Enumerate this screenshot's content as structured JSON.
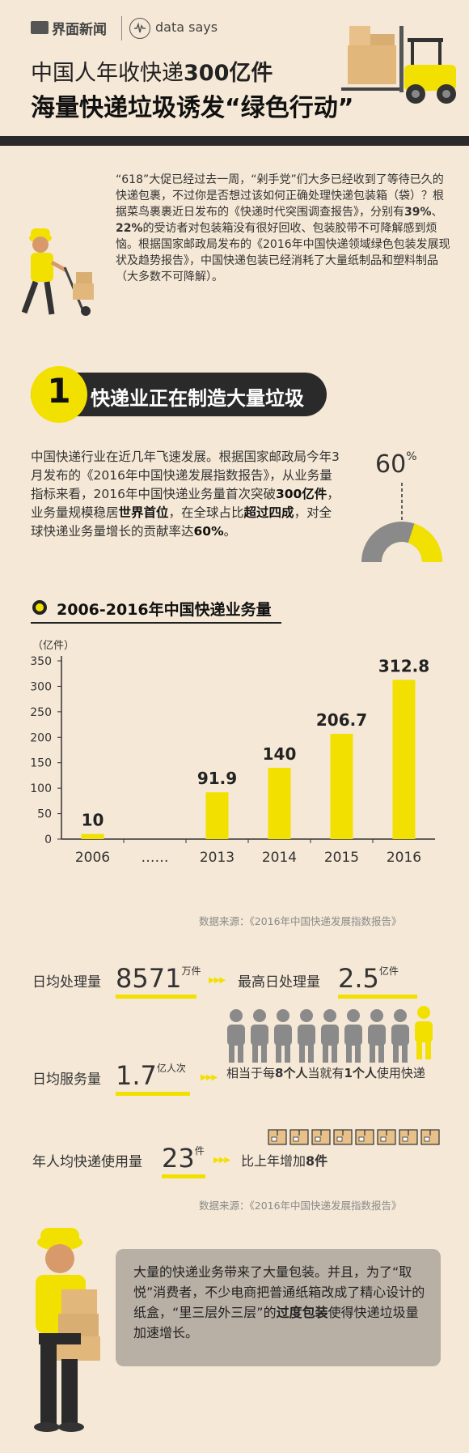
{
  "header": {
    "brand": "界面新闻",
    "data_says": "data says",
    "headline_line1_pre": "中国人年收快递",
    "headline_line1_bold": "300亿件",
    "headline_line2": "海量快递垃圾诱发“绿色行动”"
  },
  "intro": {
    "text_pre": "“618”大促已经过去一周，“剁手党”们大多已经收到了等待已久的快递包裹，不过你是否想过该如何正确处理快递包装箱（袋）？根据菜鸟裹裹近日发布的《快递时代突围调查报告》，分别有",
    "pct1": "39%",
    "sep": "、",
    "pct2": "22%",
    "text_post": "的受访者对包装箱没有很好回收、包装胶带不可降解感到烦恼。根据国家邮政局发布的《2016年中国快递领域绿色包装发展现状及趋势报告》，中国快递包装已经消耗了大量纸制品和塑料制品（大多数不可降解）。"
  },
  "section1": {
    "number": "1",
    "title": "快递业正在制造大量垃圾",
    "p1": "中国快递行业在近几年飞速发展。根据国家邮政局今年3月发布的《2016年中国快递发展指数报告》，从业务量指标来看，2016年中国快递业务量首次突破",
    "b1": "300亿件",
    "p2": "，业务量规模稳居",
    "b2": "世界首位",
    "p3": "，在全球占比",
    "b3": "超过四成",
    "p4": "，对全球快递业务量增长的贡献率达",
    "b4": "60%",
    "p5": "。",
    "gauge_value": "60",
    "gauge_unit": "%",
    "gauge_fraction": 0.6
  },
  "chart_data": {
    "type": "bar",
    "title": "2006-2016年中国快递业务量",
    "ylabel": "（亿件）",
    "xlabel": "",
    "categories": [
      "2006",
      "……",
      "2013",
      "2014",
      "2015",
      "2016"
    ],
    "values": [
      10,
      null,
      91.9,
      140,
      206.7,
      312.8
    ],
    "labels": [
      "10",
      "",
      "91.9",
      "140",
      "206.7",
      "312.8"
    ],
    "ylim": [
      0,
      350
    ],
    "yticks": [
      0,
      50,
      100,
      150,
      200,
      250,
      300,
      350
    ],
    "ytick_labels": [
      "0",
      "50",
      "100",
      "150",
      "200",
      "250",
      "300",
      "350"
    ],
    "source": "数据来源：《2016年中国快递发展指数报告》",
    "colors": {
      "bar": "#f2e000",
      "axis": "#333333"
    }
  },
  "stats": {
    "daily_label": "日均处理量",
    "daily_value": "8571",
    "daily_unit": "万件",
    "peak_label": "最高日处理量",
    "peak_value": "2.5",
    "peak_unit": "亿件",
    "service_label": "日均服务量",
    "service_value": "1.7",
    "service_unit": "亿人次",
    "service_note_pre": "相当于每",
    "service_note_b1": "8个人",
    "service_note_mid": "当就有",
    "service_note_b2": "1个人",
    "service_note_post": "使用快递",
    "percap_label": "年人均快递使用量",
    "percap_value": "23",
    "percap_unit": "件",
    "percap_note_pre": "比上年增加",
    "percap_note_b": "8件",
    "source": "数据来源：《2016年中国快递发展指数报告》",
    "arrows": "▶▶▶"
  },
  "note": {
    "pre": "大量的快递业务带来了大量包装。并且，为了“取悦”消费者，不少电商把普通纸箱改成了精心设计的纸盒，“里三层外三层”的",
    "bold": "过度包装",
    "post": "使得快递垃圾量加速增长。"
  },
  "colors": {
    "accent": "#f2e000",
    "background": "#f5e8d6",
    "dark": "#2a2a2a"
  }
}
